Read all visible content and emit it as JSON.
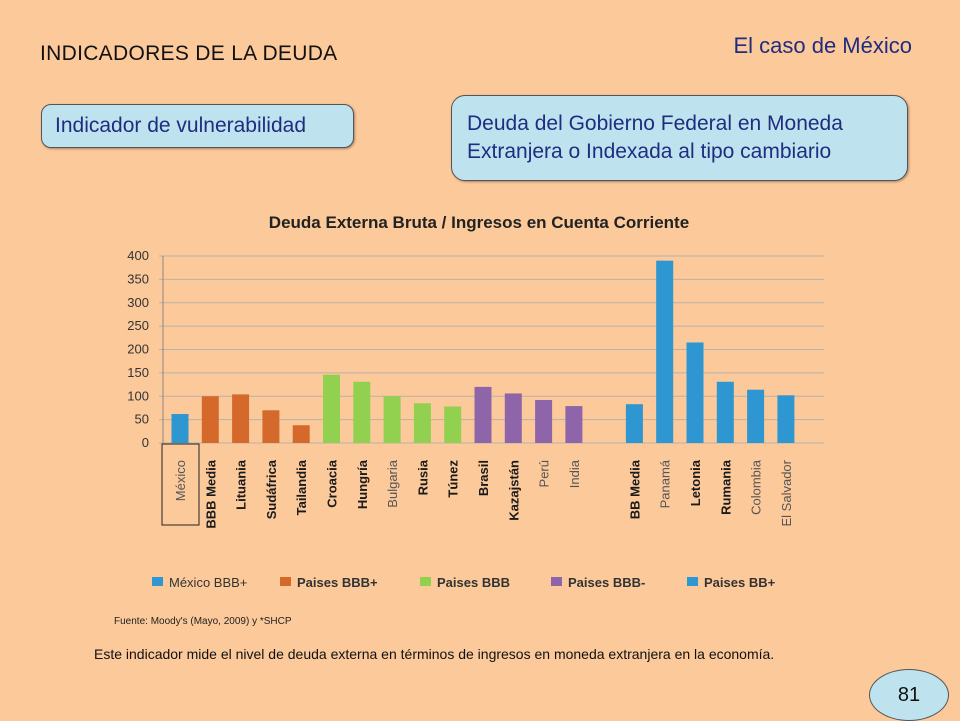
{
  "header": {
    "title": "INDICADORES DE LA DEUDA",
    "case_title": "El caso de México"
  },
  "boxes": {
    "vulnerability": "Indicador de vulnerabilidad",
    "debt_line1": "Deuda del Gobierno Federal en Moneda",
    "debt_line2": "Extranjera o Indexada al tipo cambiario"
  },
  "chart_data": {
    "type": "bar",
    "title": "Deuda Externa Bruta / Ingresos en Cuenta Corriente",
    "ylim": [
      0,
      400
    ],
    "yticks": [
      0,
      50,
      100,
      150,
      200,
      250,
      300,
      350,
      400
    ],
    "grid": true,
    "highlighted_category": "México",
    "categories": [
      "México",
      "BBB Media",
      "Lituania",
      "Sudáfrica",
      "Tailandia",
      "Croacia",
      "Hungría",
      "Bulgaria",
      "Rusia",
      "Túnez",
      "Brasil",
      "Kazajstán",
      "Perú",
      "India",
      "BB Media",
      "Panamá",
      "Letonia",
      "Rumania",
      "Colombia",
      "El Salvador"
    ],
    "values": [
      62,
      100,
      104,
      70,
      38,
      146,
      131,
      100,
      85,
      78,
      120,
      106,
      92,
      79,
      83,
      390,
      215,
      131,
      114,
      102
    ],
    "groups": [
      "México BBB+",
      "Paises BBB+",
      "Paises BBB+",
      "Paises BBB+",
      "Paises BBB+",
      "Paises BBB",
      "Paises BBB",
      "Paises BBB",
      "Paises BBB",
      "Paises BBB",
      "Paises BBB-",
      "Paises BBB-",
      "Paises BBB-",
      "Paises BBB-",
      "Paises BB+",
      "Paises BB+",
      "Paises BB+",
      "Paises BB+",
      "Paises BB+",
      "Paises BB+"
    ],
    "legend_placement": "bottom",
    "legend": [
      {
        "name": "México BBB+",
        "color": "#2E96D1"
      },
      {
        "name": "Paises BBB+",
        "color": "#D4692B"
      },
      {
        "name": "Paises BBB",
        "color": "#92D050"
      },
      {
        "name": "Paises BBB-",
        "color": "#8E65A8"
      },
      {
        "name": "Paises BB+",
        "color": "#2E96D1"
      }
    ]
  },
  "source": "Fuente: Moody's (Mayo, 2009) y *SHCP",
  "footnote": "Este indicador mide el nivel de deuda externa en términos de ingresos en moneda extranjera en la economía.",
  "page_number": "81"
}
